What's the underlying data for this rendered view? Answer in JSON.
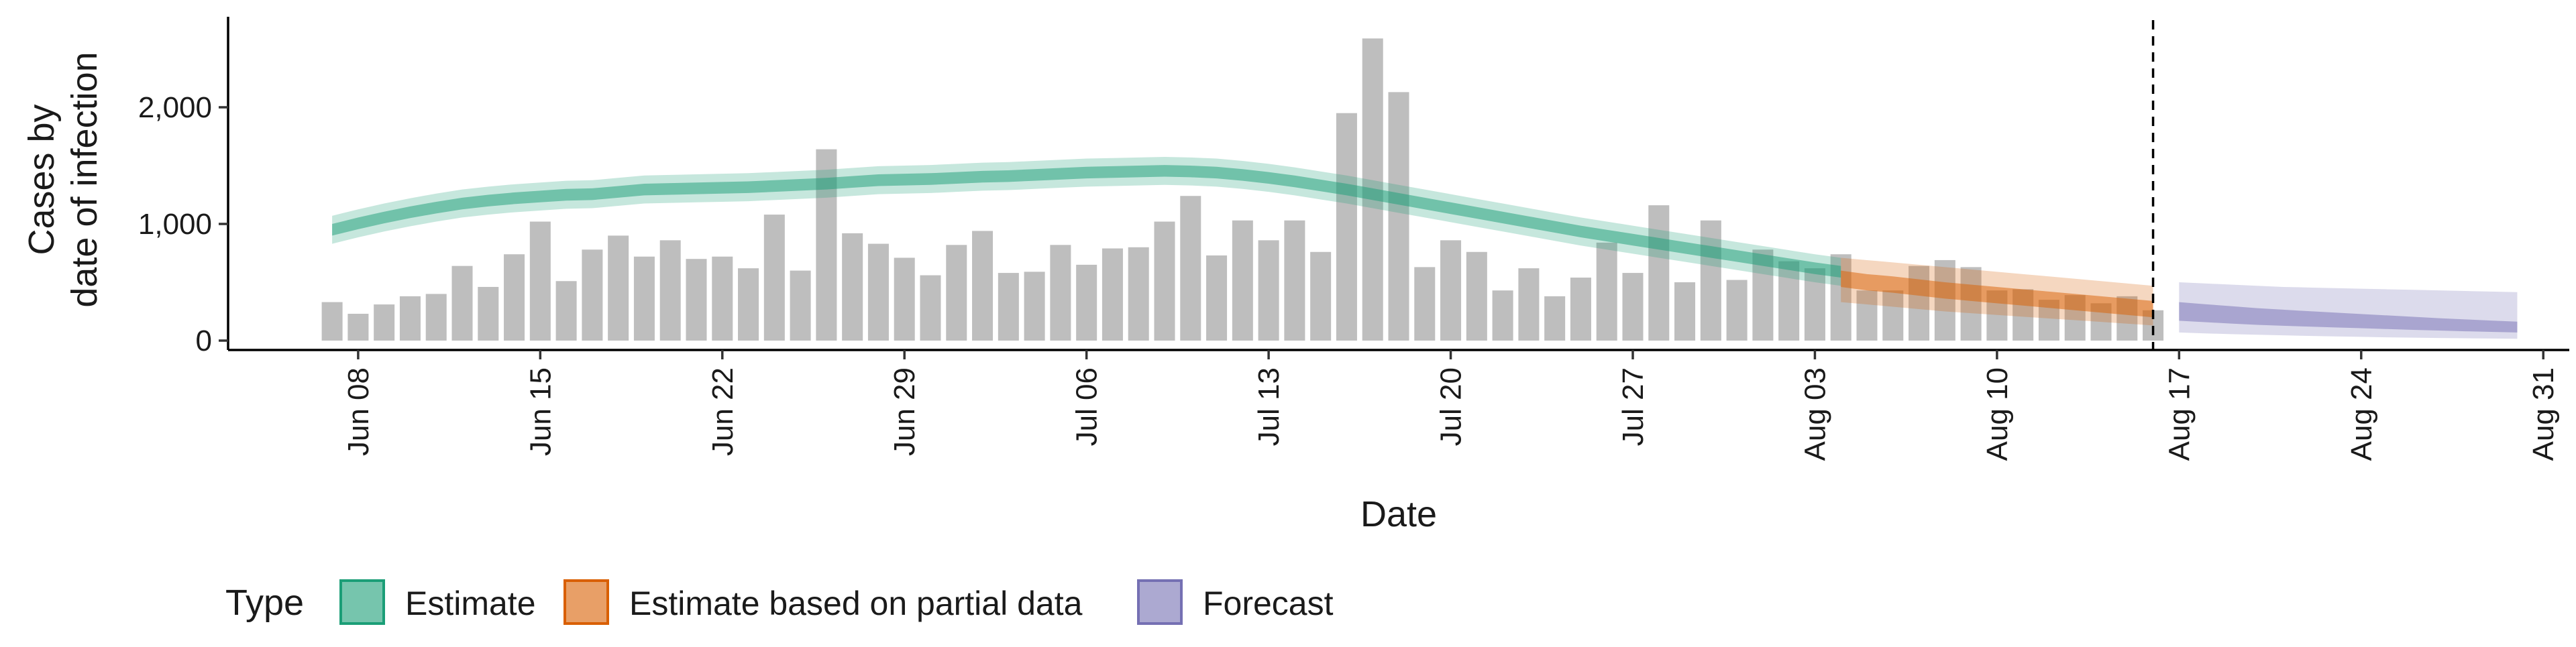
{
  "chart_data": {
    "type": "bar",
    "xlabel": "Date",
    "ylabel_lines": [
      "Cases by",
      "date of infection"
    ],
    "ylim": [
      0,
      2750
    ],
    "y_ticks": [
      {
        "value": 0,
        "label": "0"
      },
      {
        "value": 1000,
        "label": "1,000"
      },
      {
        "value": 2000,
        "label": "2,000"
      }
    ],
    "x_range": [
      "2020-06-03",
      "2020-09-01"
    ],
    "x_ticks": [
      {
        "date": "2020-06-08",
        "label": "Jun 08"
      },
      {
        "date": "2020-06-15",
        "label": "Jun 15"
      },
      {
        "date": "2020-06-22",
        "label": "Jun 22"
      },
      {
        "date": "2020-06-29",
        "label": "Jun 29"
      },
      {
        "date": "2020-07-06",
        "label": "Jul 06"
      },
      {
        "date": "2020-07-13",
        "label": "Jul 13"
      },
      {
        "date": "2020-07-20",
        "label": "Jul 20"
      },
      {
        "date": "2020-07-27",
        "label": "Jul 27"
      },
      {
        "date": "2020-08-03",
        "label": "Aug 03"
      },
      {
        "date": "2020-08-10",
        "label": "Aug 10"
      },
      {
        "date": "2020-08-17",
        "label": "Aug 17"
      },
      {
        "date": "2020-08-24",
        "label": "Aug 24"
      },
      {
        "date": "2020-08-31",
        "label": "Aug 31"
      }
    ],
    "forecast_date": "2020-08-16",
    "bars": {
      "start_date": "2020-06-07",
      "values": [
        330,
        230,
        310,
        380,
        400,
        640,
        460,
        740,
        1020,
        510,
        780,
        900,
        720,
        860,
        700,
        720,
        620,
        1080,
        600,
        1640,
        920,
        830,
        710,
        560,
        820,
        940,
        580,
        590,
        820,
        650,
        790,
        800,
        1020,
        1240,
        730,
        1030,
        860,
        1030,
        760,
        1950,
        2590,
        2130,
        630,
        860,
        760,
        430,
        620,
        380,
        540,
        840,
        580,
        1160,
        500,
        1030,
        520,
        780,
        680,
        620,
        740,
        430,
        430,
        640,
        690,
        630,
        430,
        440,
        350,
        390,
        320,
        380,
        260
      ],
      "color": "#bebebe"
    },
    "series": [
      {
        "name": "Estimate",
        "color": "#1b9e77",
        "start_date": "2020-06-07",
        "median": [
          950,
          1005,
          1055,
          1100,
          1140,
          1175,
          1200,
          1220,
          1235,
          1250,
          1255,
          1275,
          1295,
          1300,
          1305,
          1310,
          1315,
          1325,
          1335,
          1345,
          1360,
          1375,
          1380,
          1385,
          1395,
          1405,
          1410,
          1420,
          1430,
          1440,
          1445,
          1450,
          1455,
          1450,
          1440,
          1420,
          1395,
          1365,
          1330,
          1295,
          1255,
          1215,
          1175,
          1135,
          1095,
          1055,
          1015,
          975,
          935,
          900,
          865,
          830,
          795,
          760,
          725,
          690,
          655,
          620,
          590
        ],
        "inner_lower": [
          900,
          955,
          1005,
          1050,
          1090,
          1125,
          1150,
          1170,
          1185,
          1200,
          1205,
          1225,
          1245,
          1250,
          1255,
          1260,
          1265,
          1275,
          1285,
          1295,
          1310,
          1325,
          1330,
          1335,
          1345,
          1355,
          1360,
          1370,
          1380,
          1390,
          1395,
          1400,
          1405,
          1400,
          1390,
          1370,
          1345,
          1315,
          1280,
          1245,
          1205,
          1165,
          1125,
          1085,
          1045,
          1005,
          965,
          925,
          885,
          850,
          815,
          780,
          745,
          710,
          675,
          640,
          605,
          570,
          540
        ],
        "inner_upper": [
          1000,
          1055,
          1105,
          1150,
          1190,
          1225,
          1250,
          1270,
          1285,
          1300,
          1305,
          1325,
          1345,
          1350,
          1355,
          1360,
          1365,
          1375,
          1385,
          1395,
          1410,
          1425,
          1430,
          1435,
          1445,
          1455,
          1460,
          1470,
          1480,
          1490,
          1495,
          1500,
          1505,
          1500,
          1490,
          1470,
          1445,
          1415,
          1380,
          1345,
          1305,
          1265,
          1225,
          1185,
          1145,
          1105,
          1065,
          1025,
          985,
          950,
          915,
          880,
          845,
          810,
          775,
          740,
          705,
          670,
          640
        ],
        "lower": [
          830,
          885,
          935,
          980,
          1020,
          1055,
          1080,
          1100,
          1115,
          1130,
          1135,
          1155,
          1175,
          1180,
          1185,
          1190,
          1195,
          1205,
          1215,
          1225,
          1240,
          1255,
          1260,
          1265,
          1275,
          1285,
          1290,
          1300,
          1310,
          1320,
          1325,
          1330,
          1335,
          1330,
          1320,
          1300,
          1275,
          1245,
          1210,
          1175,
          1135,
          1095,
          1055,
          1015,
          975,
          935,
          895,
          855,
          815,
          780,
          745,
          710,
          675,
          640,
          605,
          570,
          535,
          500,
          470
        ],
        "upper": [
          1070,
          1125,
          1175,
          1220,
          1260,
          1295,
          1320,
          1340,
          1355,
          1370,
          1375,
          1395,
          1415,
          1420,
          1425,
          1430,
          1435,
          1445,
          1455,
          1465,
          1480,
          1495,
          1500,
          1505,
          1515,
          1525,
          1530,
          1540,
          1550,
          1560,
          1565,
          1570,
          1575,
          1570,
          1560,
          1540,
          1515,
          1485,
          1450,
          1415,
          1375,
          1335,
          1295,
          1255,
          1215,
          1175,
          1135,
          1095,
          1055,
          1020,
          985,
          950,
          915,
          880,
          845,
          810,
          775,
          740,
          710
        ]
      },
      {
        "name": "Estimate based on partial data",
        "color": "#d95f02",
        "start_date": "2020-08-04",
        "median": [
          530,
          500,
          480,
          455,
          430,
          410,
          390,
          370,
          350,
          330,
          310,
          290,
          270
        ],
        "inner_lower": [
          460,
          430,
          410,
          385,
          360,
          340,
          320,
          300,
          280,
          260,
          240,
          220,
          200
        ],
        "inner_upper": [
          600,
          570,
          550,
          525,
          500,
          480,
          460,
          440,
          420,
          400,
          380,
          360,
          340
        ],
        "lower": [
          330,
          310,
          290,
          270,
          250,
          235,
          220,
          205,
          190,
          175,
          160,
          145,
          130
        ],
        "upper": [
          710,
          690,
          670,
          650,
          630,
          610,
          590,
          570,
          550,
          530,
          510,
          490,
          470
        ]
      },
      {
        "name": "Forecast",
        "color": "#7570b3",
        "start_date": "2020-08-17",
        "median": [
          250,
          235,
          220,
          205,
          195,
          185,
          175,
          165,
          155,
          145,
          135,
          128,
          120,
          112
        ],
        "inner_lower": [
          170,
          158,
          146,
          135,
          127,
          120,
          113,
          106,
          99,
          92,
          86,
          80,
          75,
          70
        ],
        "inner_upper": [
          330,
          312,
          295,
          278,
          265,
          252,
          240,
          228,
          216,
          204,
          192,
          182,
          172,
          162
        ],
        "lower": [
          70,
          62,
          55,
          50,
          45,
          40,
          36,
          32,
          28,
          25,
          22,
          20,
          18,
          16
        ],
        "upper": [
          500,
          490,
          480,
          470,
          460,
          455,
          450,
          445,
          440,
          435,
          430,
          425,
          420,
          415
        ]
      }
    ],
    "legend": {
      "title": "Type",
      "position": "bottom",
      "items": [
        {
          "label": "Estimate",
          "color": "#1b9e77"
        },
        {
          "label": "Estimate based on partial data",
          "color": "#d95f02"
        },
        {
          "label": "Forecast",
          "color": "#7570b3"
        }
      ]
    },
    "grid": false
  }
}
